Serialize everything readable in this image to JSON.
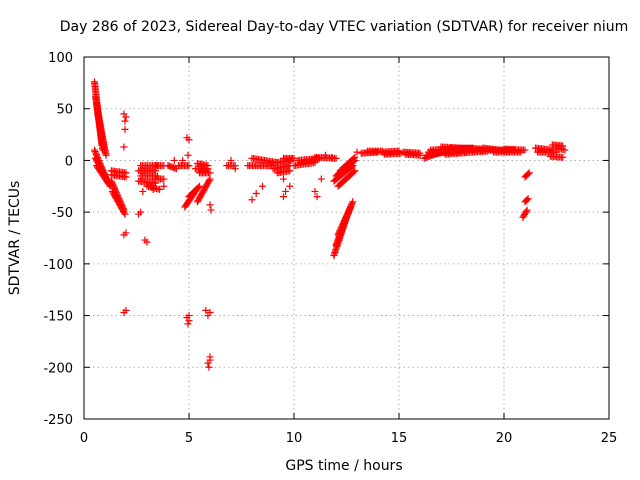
{
  "chart_data": {
    "type": "scatter",
    "title": "Day 286 of 2023, Sidereal Day-to-day VTEC variation (SDTVAR) for receiver nium",
    "xlabel": "GPS time / hours",
    "ylabel": "SDTVAR / TECUs",
    "xlim": [
      0,
      25
    ],
    "ylim": [
      -250,
      100
    ],
    "xticks": [
      0,
      5,
      10,
      15,
      20,
      25
    ],
    "yticks": [
      100,
      50,
      0,
      -50,
      -100,
      -150,
      -200,
      -250
    ],
    "grid": true,
    "marker": "plus",
    "color": "#ff0000",
    "segments": [
      [
        0.5,
        76,
        0.85,
        15
      ],
      [
        0.55,
        62,
        0.9,
        10
      ],
      [
        0.6,
        55,
        1.0,
        8
      ],
      [
        0.65,
        45,
        1.05,
        5
      ],
      [
        0.5,
        10,
        1.1,
        -20
      ],
      [
        0.55,
        2,
        1.2,
        -22
      ],
      [
        0.6,
        -5,
        1.25,
        -25
      ],
      [
        1.3,
        -20,
        1.9,
        -48
      ],
      [
        1.35,
        -30,
        1.95,
        -52
      ],
      [
        1.3,
        -10,
        2.0,
        -12
      ],
      [
        1.3,
        -14,
        2.0,
        -16
      ],
      [
        2.6,
        -10,
        3.4,
        -10
      ],
      [
        2.7,
        -5,
        3.5,
        -5
      ],
      [
        2.7,
        -15,
        3.5,
        -15
      ],
      [
        2.6,
        -20,
        3.4,
        -22
      ],
      [
        3.0,
        -25,
        3.6,
        -28
      ],
      [
        3.4,
        -5,
        3.8,
        -5
      ],
      [
        3.4,
        -18,
        3.8,
        -18
      ],
      [
        4.0,
        -5,
        4.4,
        -8
      ],
      [
        4.5,
        -5,
        5.0,
        -5
      ],
      [
        4.8,
        -45,
        5.3,
        -30
      ],
      [
        5.0,
        -35,
        5.5,
        -25
      ],
      [
        5.4,
        -40,
        6.0,
        -18
      ],
      [
        5.3,
        -8,
        5.9,
        -8
      ],
      [
        5.4,
        -3,
        5.9,
        -5
      ],
      [
        5.5,
        -12,
        6.0,
        -12
      ],
      [
        6.8,
        -5,
        7.2,
        -5
      ],
      [
        7.8,
        -5,
        9.0,
        -5
      ],
      [
        8.0,
        2,
        9.2,
        -2
      ],
      [
        9.0,
        -8,
        9.8,
        -5
      ],
      [
        9.2,
        -2,
        9.9,
        0
      ],
      [
        9.2,
        -12,
        9.8,
        -10
      ],
      [
        9.5,
        2,
        10.0,
        2
      ],
      [
        10.0,
        -5,
        11.0,
        -2
      ],
      [
        10.2,
        0,
        11.2,
        2
      ],
      [
        11.0,
        3,
        12.0,
        2
      ],
      [
        11.9,
        -92,
        12.5,
        -55
      ],
      [
        12.0,
        -82,
        12.7,
        -45
      ],
      [
        12.1,
        -72,
        12.8,
        -40
      ],
      [
        11.9,
        -20,
        12.8,
        -5
      ],
      [
        12.0,
        -15,
        12.9,
        0
      ],
      [
        12.1,
        -25,
        12.9,
        -10
      ],
      [
        12.2,
        -10,
        12.9,
        3
      ],
      [
        13.2,
        7,
        14.0,
        8
      ],
      [
        13.5,
        9,
        14.2,
        9
      ],
      [
        14.2,
        8,
        15.0,
        9
      ],
      [
        14.3,
        6,
        15.1,
        7
      ],
      [
        15.2,
        8,
        16.0,
        7
      ],
      [
        15.3,
        6,
        16.0,
        5
      ],
      [
        16.2,
        2,
        17.5,
        12
      ],
      [
        16.3,
        5,
        17.8,
        10
      ],
      [
        16.4,
        8,
        18.2,
        8
      ],
      [
        16.5,
        10,
        18.5,
        12
      ],
      [
        17.0,
        13,
        19.0,
        11
      ],
      [
        17.2,
        6,
        19.2,
        9
      ],
      [
        18.5,
        10,
        20.5,
        10
      ],
      [
        19.0,
        12,
        20.2,
        9
      ],
      [
        19.5,
        8,
        20.8,
        8
      ],
      [
        20.0,
        11,
        21.0,
        10
      ],
      [
        20.9,
        -55,
        21.1,
        -48
      ],
      [
        21.0,
        -40,
        21.15,
        -37
      ],
      [
        21.0,
        -16,
        21.2,
        -12
      ],
      [
        21.5,
        12,
        22.3,
        10
      ],
      [
        21.6,
        8,
        22.5,
        8
      ],
      [
        22.3,
        15,
        22.8,
        14
      ],
      [
        22.2,
        4,
        22.8,
        3
      ],
      [
        22.5,
        12,
        22.9,
        10
      ]
    ],
    "points": [
      [
        1.9,
        45
      ],
      [
        1.95,
        38
      ],
      [
        2.0,
        42
      ],
      [
        1.95,
        30
      ],
      [
        1.9,
        13
      ],
      [
        1.9,
        -72
      ],
      [
        2.0,
        -70
      ],
      [
        1.9,
        -147
      ],
      [
        2.0,
        -145
      ],
      [
        2.6,
        -52
      ],
      [
        2.7,
        -50
      ],
      [
        2.9,
        -77
      ],
      [
        3.0,
        -79
      ],
      [
        2.8,
        -30
      ],
      [
        3.3,
        -28
      ],
      [
        3.8,
        -25
      ],
      [
        4.3,
        0
      ],
      [
        4.7,
        0
      ],
      [
        4.9,
        22
      ],
      [
        5.0,
        20
      ],
      [
        4.95,
        5
      ],
      [
        4.9,
        -152
      ],
      [
        5.0,
        -150
      ],
      [
        4.95,
        -158
      ],
      [
        5.0,
        -155
      ],
      [
        5.8,
        -145
      ],
      [
        5.9,
        -150
      ],
      [
        6.0,
        -147
      ],
      [
        5.9,
        -196
      ],
      [
        6.0,
        -190
      ],
      [
        5.95,
        -200
      ],
      [
        6.0,
        -193
      ],
      [
        6.0,
        -43
      ],
      [
        6.05,
        -48
      ],
      [
        7.0,
        0
      ],
      [
        7.2,
        -8
      ],
      [
        8.0,
        -38
      ],
      [
        8.2,
        -32
      ],
      [
        8.5,
        -25
      ],
      [
        9.5,
        -18
      ],
      [
        9.6,
        -30
      ],
      [
        9.5,
        -35
      ],
      [
        9.8,
        -25
      ],
      [
        11.0,
        -30
      ],
      [
        11.1,
        -35
      ],
      [
        11.3,
        -18
      ],
      [
        11.5,
        5
      ],
      [
        11.8,
        3
      ],
      [
        13.0,
        8
      ],
      [
        20.0,
        10
      ]
    ]
  }
}
